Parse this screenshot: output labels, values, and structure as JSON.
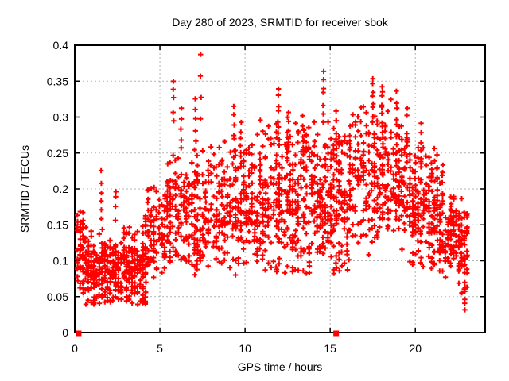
{
  "chart_data": {
    "type": "scatter",
    "title": "Day 280 of 2023, SRMTID for receiver sbok",
    "xlabel": "GPS time / hours",
    "ylabel": "SRMTID / TECUs",
    "xlim": [
      0,
      24.1
    ],
    "ylim": [
      0,
      0.4
    ],
    "x_ticks": [
      0,
      5,
      10,
      15,
      20
    ],
    "y_ticks": [
      0,
      0.05,
      0.1,
      0.15,
      0.2,
      0.25,
      0.3,
      0.35,
      0.4
    ],
    "grid": true,
    "legend": "none",
    "marker": "plus",
    "marker_color": "#ff0000",
    "grid_color": "#b3b3b3",
    "axis_color": "#000000",
    "background": "#ffffff",
    "seed": 2023280,
    "column_spacing_hours": 0.16,
    "point_bands": [
      {
        "x0": 0.08,
        "x1": 0.6,
        "n": 50,
        "y_center": 0.105,
        "y_spread": 0.05,
        "y_min": 0.045,
        "y_max": 0.17
      },
      {
        "x0": 0.6,
        "x1": 4.25,
        "n": 400,
        "y_center": 0.088,
        "y_spread": 0.042,
        "y_min": 0.038,
        "y_max": 0.152
      },
      {
        "x0": 4.1,
        "x1": 5.3,
        "n": 95,
        "y_center": 0.135,
        "y_spread": 0.05,
        "y_min": 0.07,
        "y_max": 0.21
      },
      {
        "x0": 5.3,
        "x1": 6.7,
        "n": 115,
        "y_center": 0.165,
        "y_spread": 0.065,
        "y_min": 0.08,
        "y_max": 0.26
      },
      {
        "x0": 6.7,
        "x1": 8.3,
        "n": 130,
        "y_center": 0.165,
        "y_spread": 0.07,
        "y_min": 0.08,
        "y_max": 0.27
      },
      {
        "x0": 8.3,
        "x1": 10.7,
        "n": 210,
        "y_center": 0.17,
        "y_spread": 0.075,
        "y_min": 0.075,
        "y_max": 0.285
      },
      {
        "x0": 10.7,
        "x1": 13.6,
        "n": 285,
        "y_center": 0.185,
        "y_spread": 0.085,
        "y_min": 0.08,
        "y_max": 0.305
      },
      {
        "x0": 13.6,
        "x1": 16.1,
        "n": 255,
        "y_center": 0.185,
        "y_spread": 0.085,
        "y_min": 0.08,
        "y_max": 0.305
      },
      {
        "x0": 16.1,
        "x1": 19.6,
        "n": 300,
        "y_center": 0.215,
        "y_spread": 0.075,
        "y_min": 0.1,
        "y_max": 0.33
      },
      {
        "x0": 19.6,
        "x1": 21.6,
        "n": 195,
        "y_center": 0.17,
        "y_spread": 0.065,
        "y_min": 0.085,
        "y_max": 0.285
      },
      {
        "x0": 21.6,
        "x1": 23.1,
        "n": 145,
        "y_center": 0.128,
        "y_spread": 0.05,
        "y_min": 0.055,
        "y_max": 0.2
      }
    ],
    "point_columns": [
      {
        "x": 1.55,
        "y0": 0.155,
        "y1": 0.225,
        "n": 6
      },
      {
        "x": 2.4,
        "y0": 0.16,
        "y1": 0.2,
        "n": 4
      },
      {
        "x": 4.3,
        "y0": 0.14,
        "y1": 0.195,
        "n": 5
      },
      {
        "x": 5.8,
        "y0": 0.295,
        "y1": 0.352,
        "n": 5
      },
      {
        "x": 6.25,
        "y0": 0.255,
        "y1": 0.315,
        "n": 5
      },
      {
        "x": 7.1,
        "y0": 0.265,
        "y1": 0.325,
        "n": 5
      },
      {
        "x": 7.4,
        "y0": 0.3,
        "y1": 0.386,
        "n": 4
      },
      {
        "x": 9.35,
        "y0": 0.245,
        "y1": 0.312,
        "n": 7
      },
      {
        "x": 9.75,
        "y0": 0.235,
        "y1": 0.295,
        "n": 6
      },
      {
        "x": 11.95,
        "y0": 0.265,
        "y1": 0.337,
        "n": 8
      },
      {
        "x": 12.55,
        "y0": 0.25,
        "y1": 0.305,
        "n": 6
      },
      {
        "x": 13.4,
        "y0": 0.24,
        "y1": 0.3,
        "n": 5
      },
      {
        "x": 14.6,
        "y0": 0.295,
        "y1": 0.366,
        "n": 7
      },
      {
        "x": 15.35,
        "y0": 0.255,
        "y1": 0.305,
        "n": 5
      },
      {
        "x": 17.5,
        "y0": 0.295,
        "y1": 0.352,
        "n": 8
      },
      {
        "x": 18.05,
        "y0": 0.285,
        "y1": 0.345,
        "n": 8
      },
      {
        "x": 18.9,
        "y0": 0.265,
        "y1": 0.335,
        "n": 7
      },
      {
        "x": 20.35,
        "y0": 0.235,
        "y1": 0.29,
        "n": 6
      },
      {
        "x": 21.6,
        "y0": 0.19,
        "y1": 0.235,
        "n": 4
      },
      {
        "x": 22.9,
        "y0": 0.028,
        "y1": 0.1,
        "n": 9
      }
    ],
    "zero_square_points_x": [
      0.23,
      15.35
    ]
  }
}
